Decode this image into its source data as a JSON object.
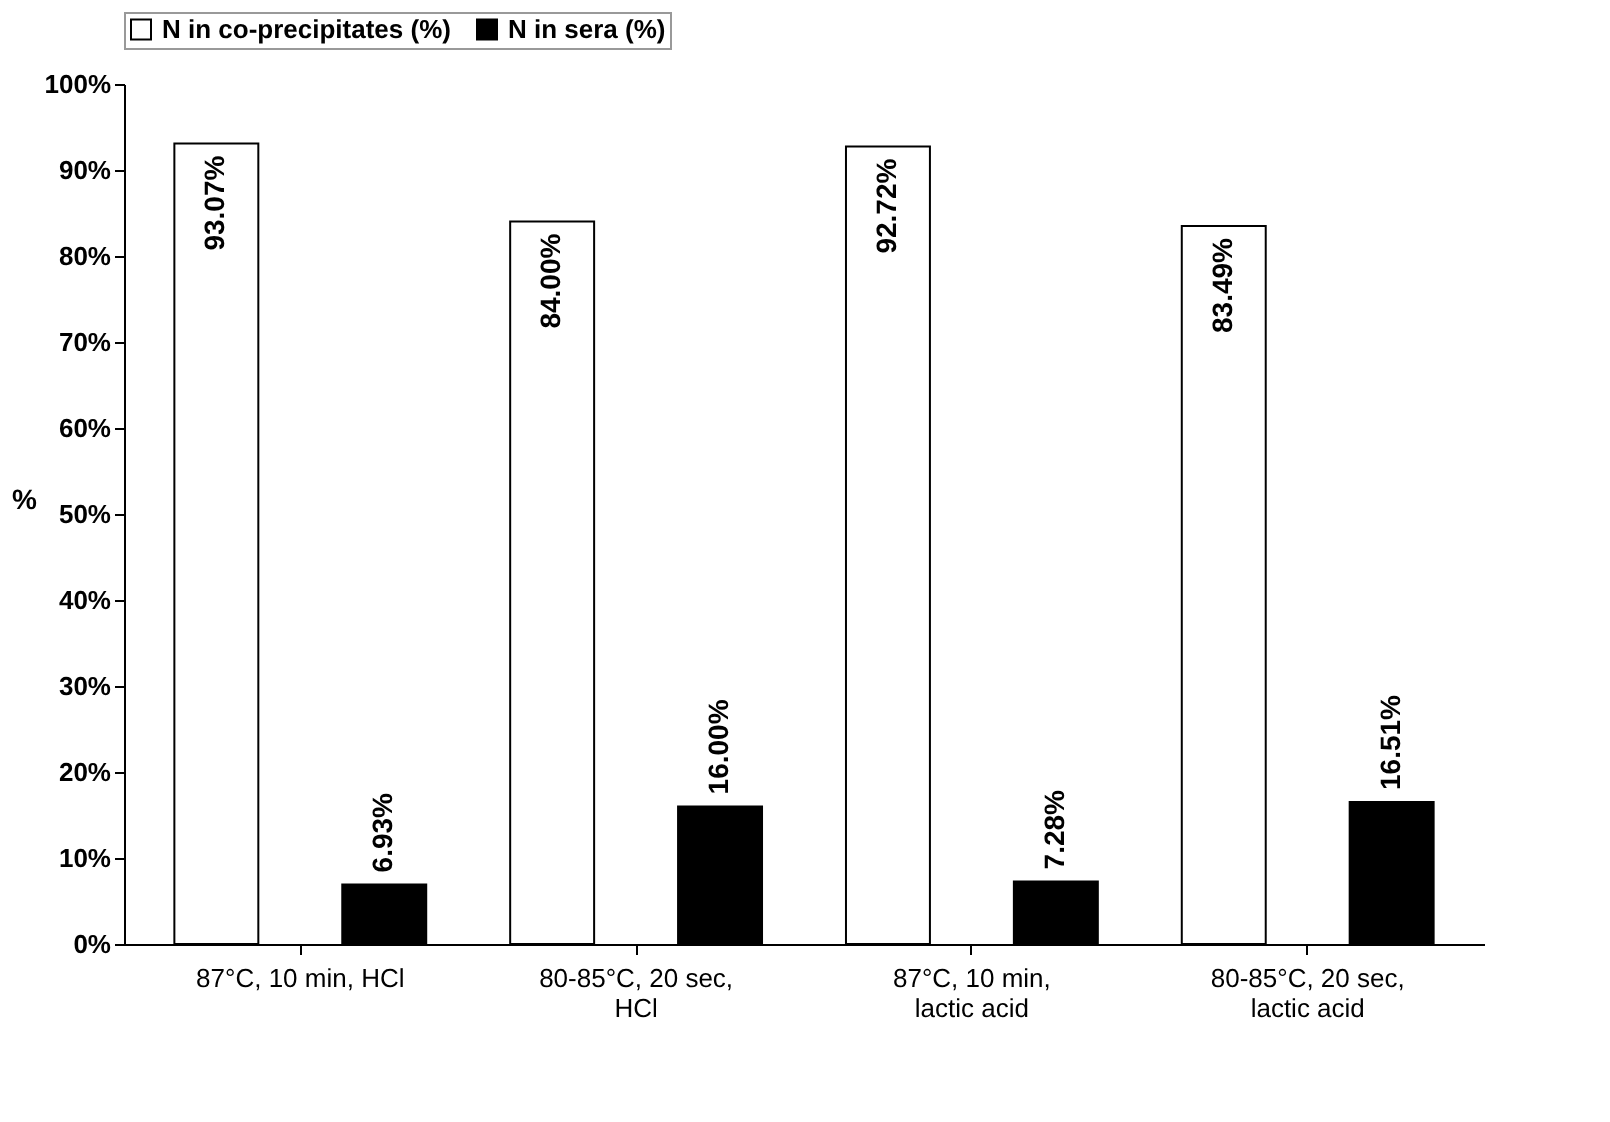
{
  "chart_data": {
    "type": "bar",
    "ylabel": "%",
    "categories": [
      "87°C, 10 min, HCl",
      "80-85°C, 20 sec, HCl",
      "87°C, 10 min, lactic acid",
      "80-85°C, 20 sec, lactic acid"
    ],
    "series": [
      {
        "name": "N in co-precipitates (%)",
        "color": "#ffffff",
        "values": [
          93.07,
          84.0,
          92.72,
          83.49
        ],
        "value_labels": [
          "93.07%",
          "84.00%",
          "92.72%",
          "83.49%"
        ]
      },
      {
        "name": "N in sera (%)",
        "color": "#000000",
        "values": [
          6.93,
          16.0,
          7.28,
          16.51
        ],
        "value_labels": [
          "6.93%",
          "16.00%",
          "7.28%",
          "16.51%"
        ]
      }
    ],
    "ylim": [
      0,
      100
    ],
    "yticks": [
      {
        "value": 0,
        "label": "0%"
      },
      {
        "value": 10,
        "label": "10%"
      },
      {
        "value": 20,
        "label": "20%"
      },
      {
        "value": 30,
        "label": "30%"
      },
      {
        "value": 40,
        "label": "40%"
      },
      {
        "value": 50,
        "label": "50%"
      },
      {
        "value": 60,
        "label": "60%"
      },
      {
        "value": 70,
        "label": "70%"
      },
      {
        "value": 80,
        "label": "80%"
      },
      {
        "value": 90,
        "label": "90%"
      },
      {
        "value": 100,
        "label": "100%"
      }
    ],
    "grid": false,
    "legend": "top"
  }
}
